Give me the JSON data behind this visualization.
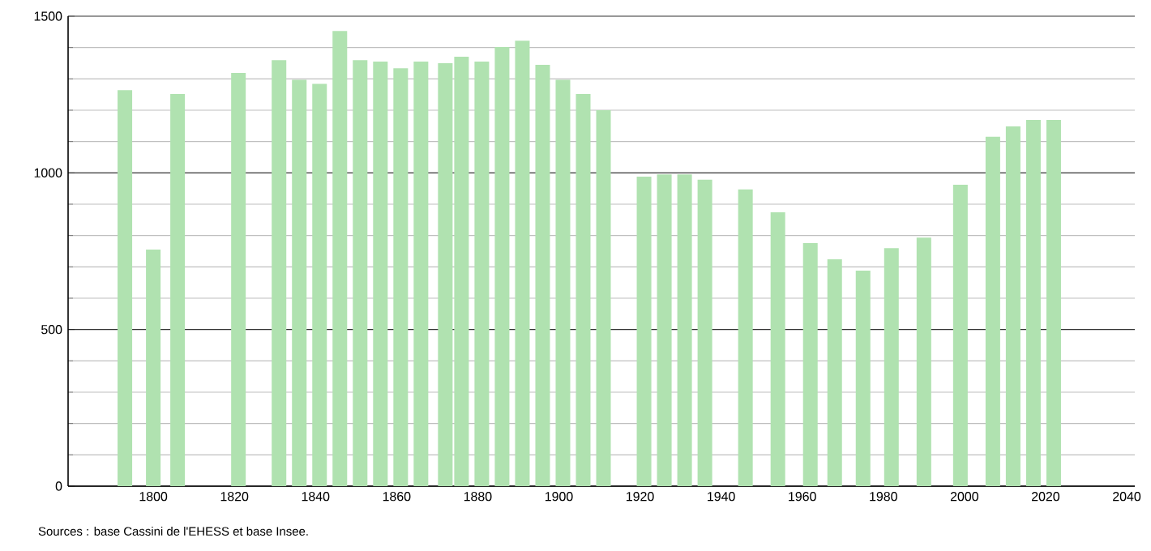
{
  "chart_data": {
    "type": "bar",
    "x": [
      1793,
      1800,
      1806,
      1821,
      1831,
      1836,
      1841,
      1846,
      1851,
      1856,
      1861,
      1866,
      1872,
      1876,
      1881,
      1886,
      1891,
      1896,
      1901,
      1906,
      1911,
      1921,
      1926,
      1931,
      1936,
      1946,
      1954,
      1962,
      1968,
      1975,
      1982,
      1990,
      1999,
      2007,
      2012,
      2017,
      2022
    ],
    "values": [
      1264,
      755,
      1252,
      1319,
      1360,
      1297,
      1284,
      1453,
      1360,
      1355,
      1334,
      1355,
      1350,
      1371,
      1355,
      1402,
      1422,
      1345,
      1297,
      1252,
      1200,
      988,
      995,
      995,
      978,
      947,
      874,
      776,
      724,
      688,
      760,
      793,
      962,
      1115,
      1148,
      1169,
      1169
    ],
    "color": "#b0e2b0",
    "xlim": [
      1779,
      2042
    ],
    "xticks": [
      1800,
      1820,
      1840,
      1860,
      1880,
      1900,
      1920,
      1940,
      1960,
      1980,
      2000,
      2020,
      2040
    ],
    "ylim": [
      0,
      1500
    ],
    "yticks": [
      0,
      {
        "value": 100,
        "label": null
      },
      {
        "value": 200,
        "label": null
      },
      {
        "value": 300,
        "label": null
      },
      {
        "value": 400,
        "label": null
      },
      500,
      {
        "value": 600,
        "label": null
      },
      {
        "value": 700,
        "label": null
      },
      {
        "value": 800,
        "label": null
      },
      {
        "value": 900,
        "label": null
      },
      1000,
      {
        "value": 1100,
        "label": null
      },
      {
        "value": 1200,
        "label": null
      },
      {
        "value": 1300,
        "label": null
      },
      {
        "value": 1400,
        "label": null
      },
      1500
    ],
    "grid": "y",
    "annotations": [
      "Sources : base Cassini de l'EHESS et base Insee."
    ]
  }
}
